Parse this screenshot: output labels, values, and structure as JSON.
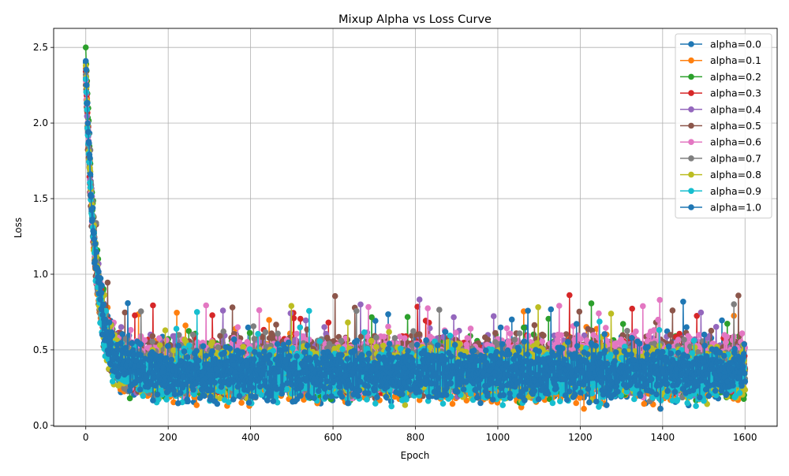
{
  "chart_data": {
    "type": "line",
    "title": "Mixup Alpha vs Loss Curve",
    "xlabel": "Epoch",
    "ylabel": "Loss",
    "xlim": [
      -78,
      1678
    ],
    "ylim": [
      -0.006,
      2.626
    ],
    "xticks": [
      0,
      200,
      400,
      600,
      800,
      1000,
      1200,
      1400,
      1600
    ],
    "yticks": [
      0.0,
      0.5,
      1.0,
      1.5,
      2.0,
      2.5
    ],
    "xtick_labels": [
      "0",
      "200",
      "400",
      "600",
      "800",
      "1000",
      "1200",
      "1400",
      "1600"
    ],
    "ytick_labels": [
      "0.0",
      "0.5",
      "1.0",
      "1.5",
      "2.0",
      "2.5"
    ],
    "grid": true,
    "legend_position": "top-right",
    "epochs": 1600,
    "series": [
      {
        "name": "alpha=0.0",
        "color": "#1f77b4",
        "start": 2.4,
        "plateau": 0.36,
        "noise": 0.13
      },
      {
        "name": "alpha=0.1",
        "color": "#ff7f0e",
        "start": 2.36,
        "plateau": 0.33,
        "noise": 0.12
      },
      {
        "name": "alpha=0.2",
        "color": "#2ca02c",
        "start": 2.5,
        "plateau": 0.37,
        "noise": 0.13
      },
      {
        "name": "alpha=0.3",
        "color": "#d62728",
        "start": 2.34,
        "plateau": 0.4,
        "noise": 0.12
      },
      {
        "name": "alpha=0.4",
        "color": "#9467bd",
        "start": 2.3,
        "plateau": 0.4,
        "noise": 0.12
      },
      {
        "name": "alpha=0.5",
        "color": "#8c564b",
        "start": 2.25,
        "plateau": 0.41,
        "noise": 0.13
      },
      {
        "name": "alpha=0.6",
        "color": "#e377c2",
        "start": 2.28,
        "plateau": 0.41,
        "noise": 0.13
      },
      {
        "name": "alpha=0.7",
        "color": "#7f7f7f",
        "start": 2.32,
        "plateau": 0.37,
        "noise": 0.12
      },
      {
        "name": "alpha=0.8",
        "color": "#bcbd22",
        "start": 2.38,
        "plateau": 0.36,
        "noise": 0.12
      },
      {
        "name": "alpha=0.9",
        "color": "#17becf",
        "start": 2.29,
        "plateau": 0.33,
        "noise": 0.12
      },
      {
        "name": "alpha=1.0",
        "color": "#1f77b4",
        "start": 2.41,
        "plateau": 0.35,
        "noise": 0.13
      }
    ]
  }
}
